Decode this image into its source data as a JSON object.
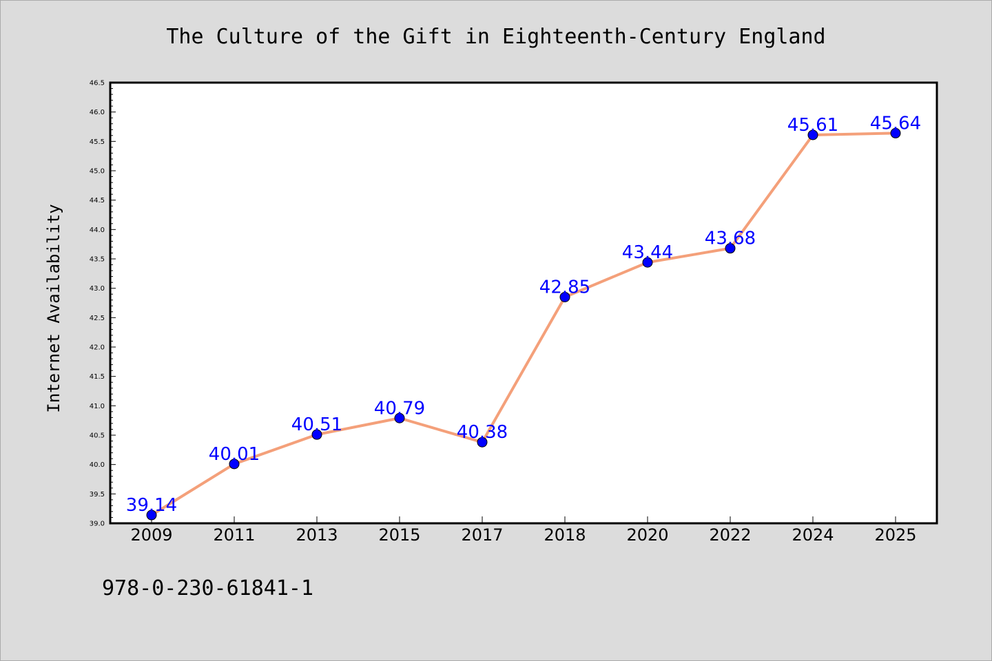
{
  "chart_data": {
    "type": "line",
    "title": "The Culture of the Gift in Eighteenth-Century England",
    "xlabel": "",
    "ylabel": "Internet Availability",
    "categories": [
      "2009",
      "2011",
      "2013",
      "2015",
      "2017",
      "2018",
      "2020",
      "2022",
      "2024",
      "2025"
    ],
    "values": [
      39.14,
      40.01,
      40.51,
      40.79,
      40.38,
      42.85,
      43.44,
      43.68,
      45.61,
      45.64
    ],
    "data_labels": [
      "39.14",
      "40.01",
      "40.51",
      "40.79",
      "40.38",
      "42.85",
      "43.44",
      "43.68",
      "45.61",
      "45.64"
    ],
    "ylim": [
      39.0,
      46.5
    ],
    "ytick_labels": [
      "39.0",
      "39.5",
      "40.0",
      "40.5",
      "41.0",
      "41.5",
      "42.0",
      "42.5",
      "43.0",
      "43.5",
      "44.0",
      "44.5",
      "45.0",
      "45.5",
      "46.0",
      "46.5"
    ],
    "grid": false,
    "legend": "none",
    "colors": {
      "line": "#f4a07a",
      "marker": "#0000ff",
      "label": "#0000ff",
      "background": "#dcdcdc",
      "plot_background": "#ffffff"
    }
  },
  "footer": {
    "isbn": "978-0-230-61841-1"
  }
}
